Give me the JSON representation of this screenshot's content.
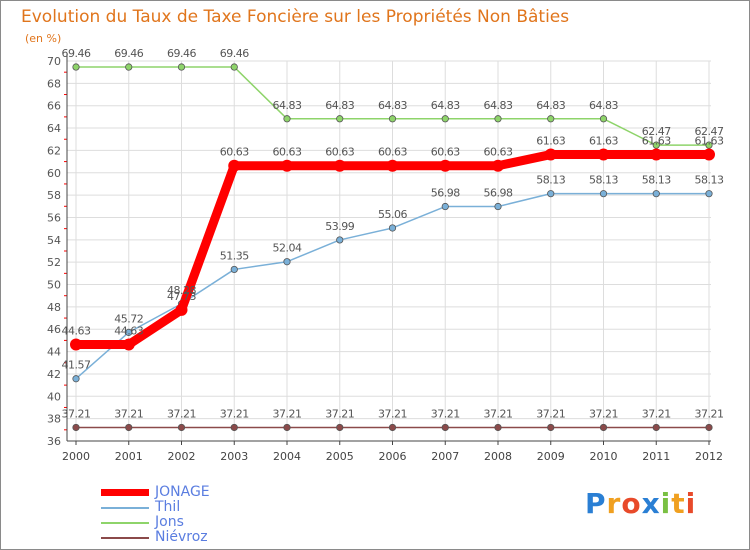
{
  "title": "Evolution du Taux de Taxe Foncière sur les Propriétés Non Bâties",
  "subtitle": "(en %)",
  "colors": {
    "title": "#e0751c",
    "axis": "#444444",
    "grid": "#dddddd",
    "label": "#555555",
    "tick_mark": "#ff0000"
  },
  "chart_data": {
    "type": "line",
    "title": "Evolution du Taux de Taxe Foncière sur les Propriétés Non Bâties",
    "ylabel": "(en %)",
    "xlabel": "",
    "ylim": [
      36,
      70
    ],
    "yticks": [
      36,
      38,
      40,
      42,
      44,
      46,
      48,
      50,
      52,
      54,
      56,
      58,
      60,
      62,
      64,
      66,
      68,
      70
    ],
    "x": [
      "2000",
      "2001",
      "2002",
      "2003",
      "2004",
      "2005",
      "2006",
      "2007",
      "2008",
      "2009",
      "2010",
      "2011",
      "2012"
    ],
    "grid": true,
    "legend_position": "bottom-left",
    "series": [
      {
        "name": "JONAGE",
        "color": "#ff0000",
        "values": [
          44.63,
          44.63,
          47.73,
          60.63,
          60.63,
          60.63,
          60.63,
          60.63,
          60.63,
          61.63,
          61.63,
          61.63,
          61.63
        ],
        "labels": [
          "44.63",
          "44.63",
          "47.73",
          "60.63",
          "60.63",
          "60.63",
          "60.63",
          "60.63",
          "60.63",
          "61.63",
          "61.63",
          "61.63",
          "61.63"
        ]
      },
      {
        "name": "Thil",
        "color": "#7ab0d8",
        "values": [
          41.57,
          45.72,
          48.28,
          51.35,
          52.04,
          53.99,
          55.06,
          56.98,
          56.98,
          58.13,
          58.13,
          58.13,
          58.13
        ],
        "labels": [
          "41.57",
          "45.72",
          "48.28",
          "51.35",
          "52.04",
          "53.99",
          "55.06",
          "56.98",
          "56.98",
          "58.13",
          "58.13",
          "58.13",
          "58.13"
        ]
      },
      {
        "name": "Jons",
        "color": "#8ed46a",
        "values": [
          69.46,
          69.46,
          69.46,
          69.46,
          64.83,
          64.83,
          64.83,
          64.83,
          64.83,
          64.83,
          64.83,
          62.47,
          62.47
        ],
        "labels": [
          "69.46",
          "69.46",
          "69.46",
          "69.46",
          "64.83",
          "64.83",
          "64.83",
          "64.83",
          "64.83",
          "64.83",
          "64.83",
          "62.47",
          "62.47"
        ]
      },
      {
        "name": "Niévroz",
        "color": "#8b4a4a",
        "values": [
          37.21,
          37.21,
          37.21,
          37.21,
          37.21,
          37.21,
          37.21,
          37.21,
          37.21,
          37.21,
          37.21,
          37.21,
          37.21
        ],
        "labels": [
          "37.21",
          "37.21",
          "37.21",
          "37.21",
          "37.21",
          "37.21",
          "37.21",
          "37.21",
          "37.21",
          "37.21",
          "37.21",
          "37.21",
          "37.21"
        ]
      }
    ]
  },
  "legend": [
    {
      "label": "JONAGE",
      "text_color": "#5a7de0",
      "swatch_color": "#ff0000",
      "icon": "thick-red-line"
    },
    {
      "label": "Thil",
      "text_color": "#5a7de0",
      "swatch_color": "#7ab0d8",
      "icon": "blue-line"
    },
    {
      "label": "Jons",
      "text_color": "#5a7de0",
      "swatch_color": "#8ed46a",
      "icon": "green-line"
    },
    {
      "label": "Niévroz",
      "text_color": "#5a7de0",
      "swatch_color": "#8b4a4a",
      "icon": "brown-line"
    }
  ],
  "logo": {
    "text": "Proxiti",
    "letters": [
      "P",
      "r",
      "o",
      "x",
      "i",
      "t",
      "i"
    ],
    "letter_colors": [
      "#2a7fd4",
      "#f0a020",
      "#e84a2a",
      "#2a7fd4",
      "#7ac043",
      "#f0a020",
      "#e84a2a"
    ]
  }
}
